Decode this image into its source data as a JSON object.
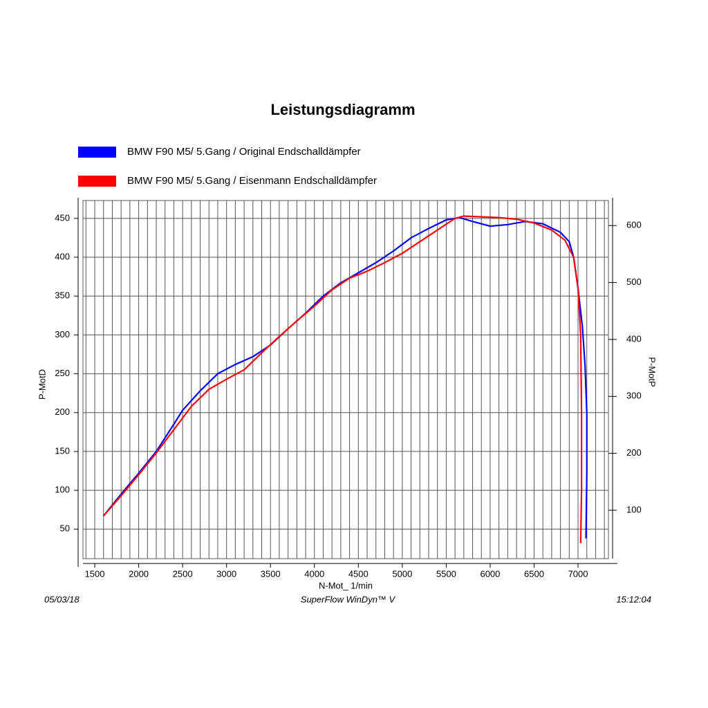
{
  "chart_data": {
    "type": "line",
    "title": "Leistungsdiagramm",
    "x_label": "N-Mot_ 1/min",
    "y_label": "P-MotD",
    "y2_label": "P-MotP",
    "footer_left": "05/03/18",
    "footer_center": "SuperFlow WinDyn™ V",
    "footer_right": "15:12:04",
    "xlim": [
      1366,
      7346
    ],
    "xticks": [
      1500,
      2000,
      2500,
      3000,
      3500,
      4000,
      4500,
      5000,
      5500,
      6000,
      6500,
      7000
    ],
    "xgrid": [
      1400,
      1500,
      1600,
      1700,
      1800,
      1900,
      2000,
      2100,
      2200,
      2300,
      2400,
      2500,
      2600,
      2700,
      2800,
      2900,
      3000,
      3100,
      3200,
      3300,
      3400,
      3500,
      3600,
      3700,
      3800,
      3900,
      4000,
      4100,
      4200,
      4300,
      4400,
      4500,
      4600,
      4700,
      4800,
      4900,
      5000,
      5100,
      5200,
      5300,
      5400,
      5500,
      5600,
      5700,
      5800,
      5900,
      6000,
      6100,
      6200,
      6300,
      6400,
      6500,
      6600,
      6700,
      6800,
      6900,
      7000,
      7100,
      7200,
      7300
    ],
    "ylim": [
      12,
      473
    ],
    "yticks": [
      50,
      100,
      150,
      200,
      250,
      300,
      350,
      400,
      450
    ],
    "y2lim": [
      15,
      644
    ],
    "y2ticks": [
      100,
      200,
      300,
      400,
      500,
      600
    ],
    "grid": true,
    "series": [
      {
        "name": "BMW F90 M5/ 5.Gang / Original Endschalldämpfer",
        "color": "#0000ff",
        "x": [
          1600,
          1800,
          2000,
          2200,
          2400,
          2500,
          2700,
          2900,
          3100,
          3300,
          3500,
          3700,
          3900,
          4100,
          4300,
          4500,
          4700,
          4900,
          5100,
          5300,
          5500,
          5650,
          5800,
          6000,
          6200,
          6400,
          6600,
          6800,
          6900,
          6950,
          7000,
          7050,
          7080,
          7100,
          7100,
          7090
        ],
        "values": [
          67,
          95,
          122,
          150,
          185,
          203,
          228,
          250,
          262,
          272,
          287,
          308,
          328,
          350,
          367,
          380,
          393,
          408,
          425,
          437,
          448,
          451,
          446,
          440,
          442,
          446,
          443,
          432,
          420,
          400,
          360,
          310,
          260,
          200,
          120,
          38
        ]
      },
      {
        "name": "BMW F90 M5/ 5.Gang / Eisenmann Endschalldämpfer",
        "color": "#ff0000",
        "x": [
          1600,
          1800,
          2000,
          2200,
          2400,
          2600,
          2800,
          3000,
          3200,
          3400,
          3600,
          3800,
          4000,
          4200,
          4400,
          4600,
          4800,
          5000,
          5200,
          5400,
          5600,
          5700,
          5900,
          6100,
          6300,
          6500,
          6700,
          6850,
          6950,
          7000,
          7030,
          7040,
          7040,
          7030
        ],
        "values": [
          67,
          93,
          120,
          148,
          178,
          208,
          230,
          243,
          255,
          277,
          298,
          318,
          337,
          358,
          373,
          382,
          393,
          405,
          420,
          435,
          450,
          453,
          452,
          451,
          449,
          444,
          435,
          422,
          400,
          360,
          300,
          200,
          100,
          32
        ]
      }
    ]
  }
}
